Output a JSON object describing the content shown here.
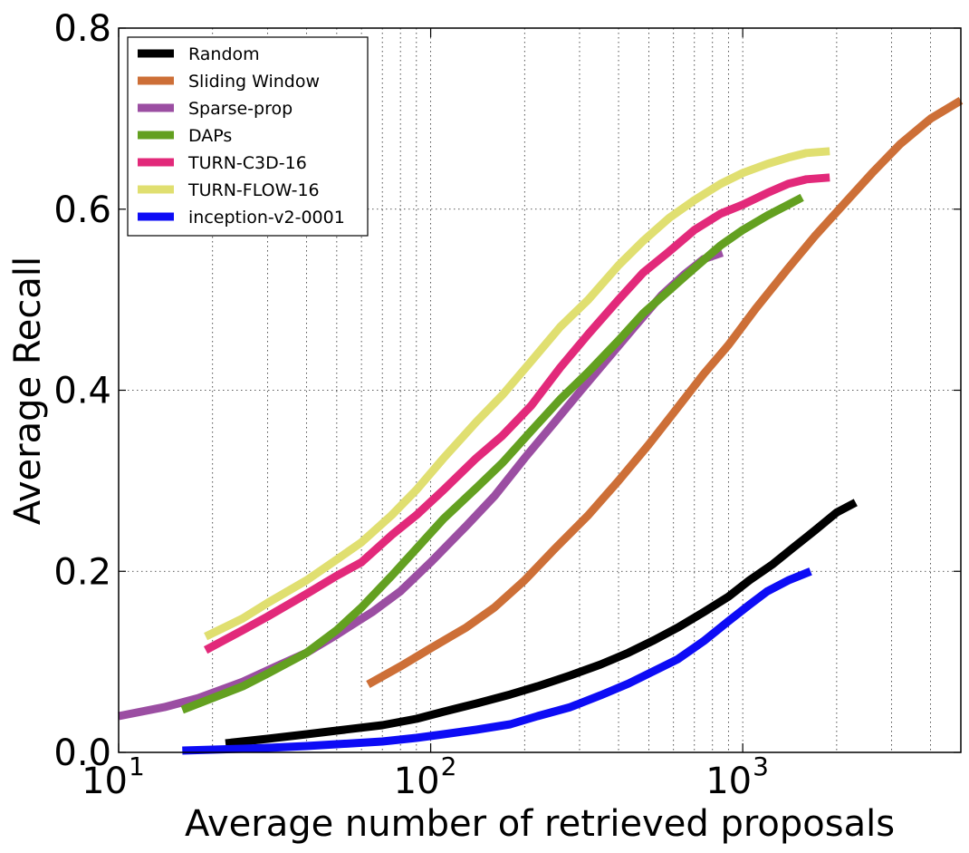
{
  "chart_data": {
    "type": "line",
    "xlabel": "Average number of retrieved proposals",
    "ylabel": "Average Recall",
    "x_scale": "log",
    "xlim": [
      10,
      5000
    ],
    "ylim": [
      0,
      0.8
    ],
    "grid": true,
    "legend_position": "top-left",
    "y_ticks": [
      {
        "value": 0.0,
        "label": "0.0"
      },
      {
        "value": 0.2,
        "label": "0.2"
      },
      {
        "value": 0.4,
        "label": "0.4"
      },
      {
        "value": 0.6,
        "label": "0.6"
      },
      {
        "value": 0.8,
        "label": "0.8"
      }
    ],
    "x_ticks": [
      {
        "value": 10,
        "base": "10",
        "exp": "1"
      },
      {
        "value": 100,
        "base": "10",
        "exp": "2"
      },
      {
        "value": 1000,
        "base": "10",
        "exp": "3"
      }
    ],
    "series": [
      {
        "name": "Random",
        "color": "#000000",
        "points": [
          [
            22,
            0.01
          ],
          [
            30,
            0.015
          ],
          [
            40,
            0.02
          ],
          [
            50,
            0.024
          ],
          [
            70,
            0.03
          ],
          [
            90,
            0.037
          ],
          [
            110,
            0.045
          ],
          [
            140,
            0.054
          ],
          [
            180,
            0.064
          ],
          [
            220,
            0.073
          ],
          [
            280,
            0.085
          ],
          [
            350,
            0.097
          ],
          [
            430,
            0.11
          ],
          [
            520,
            0.124
          ],
          [
            620,
            0.138
          ],
          [
            750,
            0.155
          ],
          [
            900,
            0.172
          ],
          [
            1050,
            0.19
          ],
          [
            1250,
            0.208
          ],
          [
            1450,
            0.226
          ],
          [
            1700,
            0.245
          ],
          [
            2000,
            0.265
          ],
          [
            2300,
            0.276
          ]
        ]
      },
      {
        "name": "Sliding Window",
        "color": "#cd6f37",
        "points": [
          [
            63,
            0.075
          ],
          [
            80,
            0.095
          ],
          [
            100,
            0.115
          ],
          [
            130,
            0.138
          ],
          [
            160,
            0.16
          ],
          [
            200,
            0.19
          ],
          [
            250,
            0.225
          ],
          [
            320,
            0.262
          ],
          [
            400,
            0.3
          ],
          [
            500,
            0.34
          ],
          [
            600,
            0.375
          ],
          [
            750,
            0.418
          ],
          [
            900,
            0.45
          ],
          [
            1100,
            0.49
          ],
          [
            1400,
            0.535
          ],
          [
            1700,
            0.57
          ],
          [
            2100,
            0.605
          ],
          [
            2600,
            0.64
          ],
          [
            3200,
            0.672
          ],
          [
            4000,
            0.7
          ],
          [
            5000,
            0.72
          ]
        ]
      },
      {
        "name": "Sparse-prop",
        "color": "#9b4ea2",
        "points": [
          [
            10,
            0.04
          ],
          [
            14,
            0.05
          ],
          [
            18,
            0.06
          ],
          [
            25,
            0.078
          ],
          [
            32,
            0.095
          ],
          [
            40,
            0.11
          ],
          [
            50,
            0.13
          ],
          [
            65,
            0.155
          ],
          [
            80,
            0.178
          ],
          [
            100,
            0.21
          ],
          [
            130,
            0.25
          ],
          [
            160,
            0.283
          ],
          [
            200,
            0.325
          ],
          [
            250,
            0.365
          ],
          [
            300,
            0.398
          ],
          [
            380,
            0.44
          ],
          [
            450,
            0.47
          ],
          [
            550,
            0.505
          ],
          [
            650,
            0.528
          ],
          [
            750,
            0.545
          ],
          [
            860,
            0.552
          ]
        ]
      },
      {
        "name": "DAPs",
        "color": "#63a020",
        "points": [
          [
            16,
            0.047
          ],
          [
            20,
            0.06
          ],
          [
            25,
            0.073
          ],
          [
            30,
            0.087
          ],
          [
            40,
            0.11
          ],
          [
            50,
            0.135
          ],
          [
            60,
            0.16
          ],
          [
            75,
            0.195
          ],
          [
            90,
            0.225
          ],
          [
            110,
            0.258
          ],
          [
            140,
            0.292
          ],
          [
            170,
            0.32
          ],
          [
            210,
            0.355
          ],
          [
            260,
            0.39
          ],
          [
            320,
            0.42
          ],
          [
            400,
            0.455
          ],
          [
            480,
            0.485
          ],
          [
            580,
            0.51
          ],
          [
            700,
            0.535
          ],
          [
            850,
            0.56
          ],
          [
            1000,
            0.577
          ],
          [
            1200,
            0.593
          ],
          [
            1400,
            0.605
          ],
          [
            1550,
            0.613
          ]
        ]
      },
      {
        "name": "TURN-C3D-16",
        "color": "#e2297a",
        "points": [
          [
            19,
            0.113
          ],
          [
            25,
            0.135
          ],
          [
            30,
            0.15
          ],
          [
            40,
            0.175
          ],
          [
            50,
            0.195
          ],
          [
            60,
            0.21
          ],
          [
            75,
            0.24
          ],
          [
            90,
            0.262
          ],
          [
            110,
            0.29
          ],
          [
            140,
            0.325
          ],
          [
            170,
            0.35
          ],
          [
            210,
            0.383
          ],
          [
            260,
            0.425
          ],
          [
            320,
            0.462
          ],
          [
            400,
            0.5
          ],
          [
            480,
            0.53
          ],
          [
            580,
            0.553
          ],
          [
            700,
            0.577
          ],
          [
            850,
            0.595
          ],
          [
            1000,
            0.605
          ],
          [
            1200,
            0.618
          ],
          [
            1400,
            0.628
          ],
          [
            1600,
            0.633
          ],
          [
            1900,
            0.635
          ]
        ]
      },
      {
        "name": "TURN-FLOW-16",
        "color": "#e0df70",
        "points": [
          [
            19,
            0.128
          ],
          [
            25,
            0.148
          ],
          [
            30,
            0.165
          ],
          [
            40,
            0.19
          ],
          [
            50,
            0.213
          ],
          [
            60,
            0.232
          ],
          [
            75,
            0.262
          ],
          [
            90,
            0.29
          ],
          [
            110,
            0.325
          ],
          [
            140,
            0.365
          ],
          [
            170,
            0.395
          ],
          [
            210,
            0.432
          ],
          [
            260,
            0.47
          ],
          [
            320,
            0.5
          ],
          [
            400,
            0.538
          ],
          [
            480,
            0.565
          ],
          [
            580,
            0.59
          ],
          [
            700,
            0.61
          ],
          [
            850,
            0.628
          ],
          [
            1000,
            0.64
          ],
          [
            1200,
            0.65
          ],
          [
            1400,
            0.657
          ],
          [
            1600,
            0.662
          ],
          [
            1900,
            0.664
          ]
        ]
      },
      {
        "name": "inception-v2-0001",
        "color": "#0d0cf5",
        "points": [
          [
            16,
            0.002
          ],
          [
            20,
            0.003
          ],
          [
            25,
            0.004
          ],
          [
            30,
            0.005
          ],
          [
            40,
            0.007
          ],
          [
            50,
            0.009
          ],
          [
            70,
            0.012
          ],
          [
            90,
            0.016
          ],
          [
            110,
            0.02
          ],
          [
            140,
            0.025
          ],
          [
            180,
            0.031
          ],
          [
            220,
            0.04
          ],
          [
            280,
            0.05
          ],
          [
            350,
            0.063
          ],
          [
            430,
            0.076
          ],
          [
            520,
            0.09
          ],
          [
            620,
            0.103
          ],
          [
            750,
            0.123
          ],
          [
            900,
            0.145
          ],
          [
            1050,
            0.163
          ],
          [
            1200,
            0.178
          ],
          [
            1400,
            0.19
          ],
          [
            1650,
            0.2
          ]
        ]
      }
    ]
  }
}
